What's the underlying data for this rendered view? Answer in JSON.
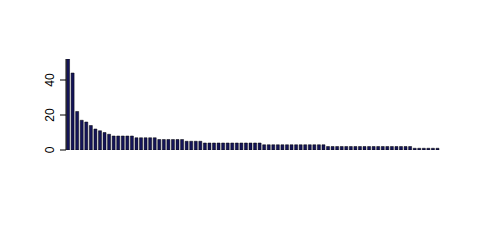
{
  "chart_data": {
    "type": "bar",
    "categories": [
      null,
      null,
      null,
      null,
      null,
      null,
      null,
      null,
      null,
      null,
      null,
      null,
      null,
      null,
      null,
      null,
      null,
      null,
      null,
      null,
      null,
      null,
      null,
      null,
      null,
      null,
      null,
      null,
      null,
      null,
      null,
      null,
      null,
      null,
      null,
      null,
      null,
      null,
      null,
      null,
      null,
      null,
      null,
      null,
      null,
      null,
      null,
      null,
      null,
      null,
      null,
      null,
      null,
      null,
      null,
      null,
      null,
      null,
      null,
      null,
      null,
      null,
      null,
      null,
      null,
      null,
      null,
      null,
      null,
      null,
      null,
      null,
      null,
      null,
      null,
      null,
      null,
      null,
      null,
      null,
      null,
      null
    ],
    "values": [
      52,
      44,
      22,
      17,
      16,
      14,
      12,
      11,
      10,
      9,
      8,
      8,
      8,
      8,
      8,
      7,
      7,
      7,
      7,
      7,
      6,
      6,
      6,
      6,
      6,
      6,
      5,
      5,
      5,
      5,
      4,
      4,
      4,
      4,
      4,
      4,
      4,
      4,
      4,
      4,
      4,
      4,
      4,
      3,
      3,
      3,
      3,
      3,
      3,
      3,
      3,
      3,
      3,
      3,
      3,
      3,
      3,
      2,
      2,
      2,
      2,
      2,
      2,
      2,
      2,
      2,
      2,
      2,
      2,
      2,
      2,
      2,
      2,
      2,
      2,
      2,
      1,
      1,
      1,
      1,
      1,
      1
    ],
    "color": "#14145a",
    "ylim": [
      0,
      52
    ],
    "yticks": [
      0,
      20,
      40
    ],
    "grid": false,
    "tick_labels": "y"
  }
}
